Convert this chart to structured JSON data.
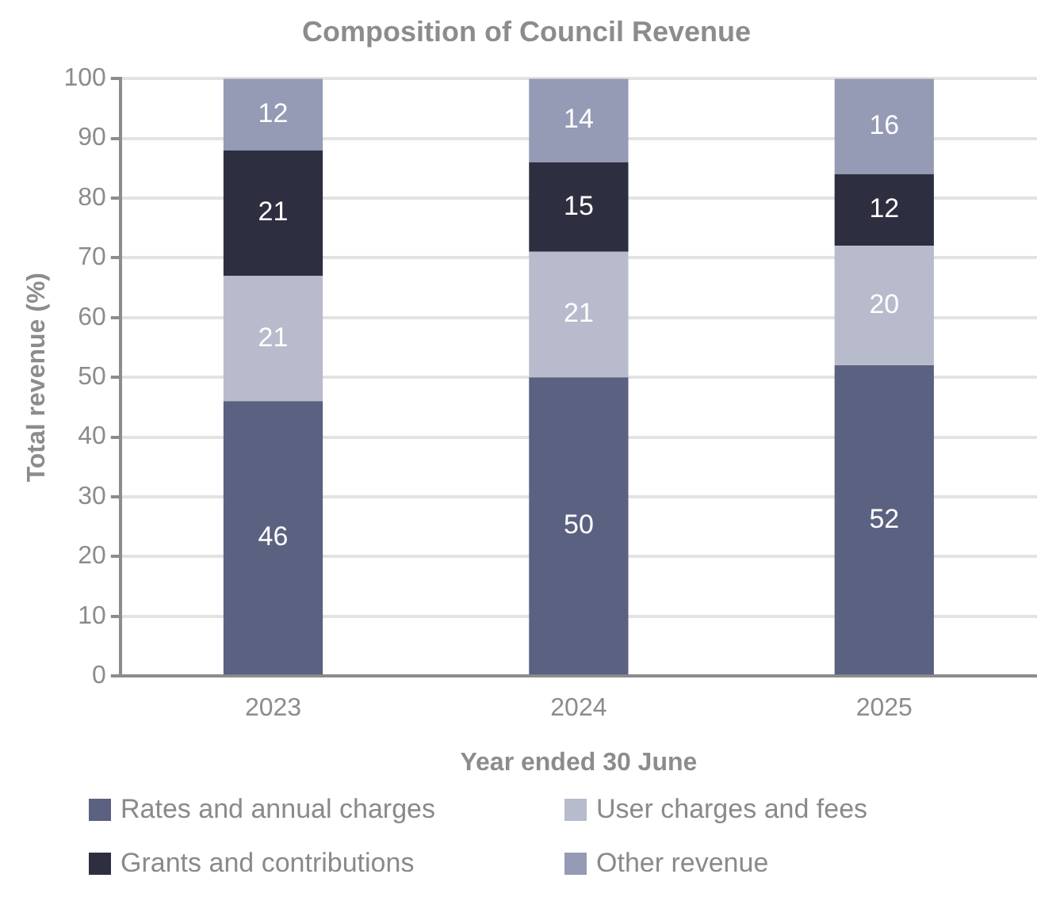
{
  "chart_data": {
    "type": "bar",
    "title": "Composition of Council Revenue",
    "xlabel": "Year ended 30 June",
    "ylabel": "Total revenue (%)",
    "categories": [
      "2023",
      "2024",
      "2025"
    ],
    "stacked": true,
    "data_labels": true,
    "grid": "y",
    "legend": "bottom",
    "ylim": [
      0,
      100
    ],
    "yticks": [
      0,
      10,
      20,
      30,
      40,
      50,
      60,
      70,
      80,
      90,
      100
    ],
    "series": [
      {
        "name": "Rates and annual charges",
        "color": "#5b6180",
        "values": [
          46,
          50,
          52
        ]
      },
      {
        "name": "User charges and fees",
        "color": "#b8bbcc",
        "values": [
          21,
          21,
          20
        ]
      },
      {
        "name": "Grants and contributions",
        "color": "#2d2f40",
        "values": [
          21,
          15,
          12
        ]
      },
      {
        "name": "Other revenue",
        "color": "#959bb5",
        "values": [
          12,
          14,
          16
        ]
      }
    ]
  }
}
